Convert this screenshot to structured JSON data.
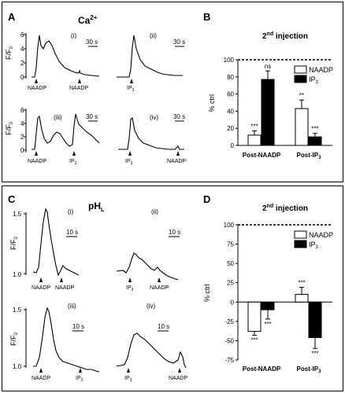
{
  "figure": {
    "top": {
      "panel_letter": "A",
      "traces_title": "Ca",
      "traces_title_sup": "2+",
      "y_label_main": "F/F",
      "y_label_sub": "0",
      "ticks": [
        "6",
        "4",
        "2",
        "0"
      ],
      "scale_bar": "30 s",
      "subpanels": [
        {
          "tag": "(i)",
          "labels": [
            "NAADP",
            "NAADP"
          ]
        },
        {
          "tag": "(ii)",
          "labels": [
            "IP",
            "3"
          ]
        },
        {
          "tag": "(iii)",
          "labels": [
            "NAADP",
            "IP"
          ]
        },
        {
          "tag": "(iv)",
          "labels": [
            "IP",
            "NAADP"
          ]
        }
      ]
    },
    "bottom": {
      "panel_letter": "C",
      "traces_title": "pH",
      "traces_title_sub": "L",
      "y_label_main": "F/F",
      "y_label_sub": "0",
      "ticks": [
        "1.5",
        "1.0"
      ],
      "scale_bar": "10 s",
      "subpanels": [
        {
          "tag": "(i)",
          "labels": [
            "NAADP",
            "NAADP"
          ]
        },
        {
          "tag": "(ii)",
          "labels": [
            "IP",
            "NAADP"
          ]
        },
        {
          "tag": "(iii)",
          "labels": [
            "NAADP",
            "IP"
          ]
        },
        {
          "tag": "(iv)",
          "labels": [
            "IP",
            "NAADP"
          ]
        }
      ]
    }
  },
  "chart_data": [
    {
      "panel": "B",
      "type": "bar",
      "title": "2nd injection",
      "ylabel": "% ctrl",
      "ylim": [
        0,
        100
      ],
      "yticks": [
        0,
        20,
        40,
        60,
        80,
        100
      ],
      "categories": [
        "Post-NAADP",
        "Post-IP3"
      ],
      "reference_line": 100,
      "legend_placement": "top-right",
      "series": [
        {
          "name": "NAADP",
          "color": "#ffffff",
          "values": [
            12,
            43
          ],
          "errors": [
            5,
            10
          ],
          "annotations": [
            "***",
            "**"
          ]
        },
        {
          "name": "IP3",
          "color": "#000000",
          "values": [
            77,
            10
          ],
          "errors": [
            10,
            4
          ],
          "annotations": [
            "ns",
            "***"
          ]
        }
      ]
    },
    {
      "panel": "D",
      "type": "bar",
      "title": "2nd injection",
      "ylabel": "% ctrl",
      "ylim": [
        -75,
        100
      ],
      "yticks": [
        -75,
        -50,
        -25,
        0,
        25,
        50,
        75,
        100
      ],
      "categories": [
        "Post-NAADP",
        "Post-IP3"
      ],
      "reference_line": 100,
      "legend_placement": "top-right",
      "series": [
        {
          "name": "NAADP",
          "color": "#ffffff",
          "values": [
            -38,
            10
          ],
          "errors": [
            5,
            9
          ],
          "annotations": [
            "***",
            "***"
          ]
        },
        {
          "name": "IP3",
          "color": "#000000",
          "values": [
            -10,
            -46
          ],
          "errors": [
            12,
            14
          ],
          "annotations": [
            "***",
            "***"
          ]
        }
      ]
    }
  ]
}
